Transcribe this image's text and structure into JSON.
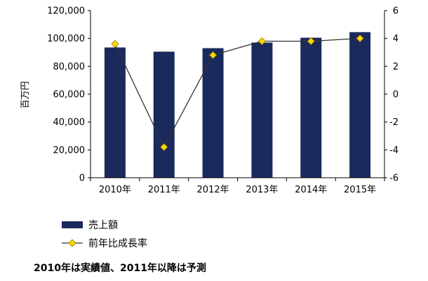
{
  "chart_data": {
    "type": "bar",
    "categories": [
      "2010年",
      "2011年",
      "2012年",
      "2013年",
      "2014年",
      "2015年"
    ],
    "series": [
      {
        "name": "売上額",
        "type": "bar",
        "axis": "left",
        "values": [
          93500,
          90500,
          93000,
          97000,
          100500,
          104500
        ],
        "color": "#1b2a5c"
      },
      {
        "name": "前年比成長率",
        "type": "line",
        "axis": "right",
        "values": [
          3.6,
          -3.8,
          2.8,
          3.8,
          3.8,
          4.0
        ],
        "color": "#ffd700",
        "line_color": "#333333"
      }
    ],
    "ylabel": "百万円",
    "ylim": [
      0,
      120000
    ],
    "yticks": [
      "0",
      "20,000",
      "40,000",
      "60,000",
      "80,000",
      "100,000",
      "120,000"
    ],
    "y2lim": [
      -6,
      6
    ],
    "y2ticks": [
      "-6",
      "-4",
      "-2",
      "0",
      "2",
      "4",
      "6"
    ],
    "grid": false,
    "legend_position": "bottom-left"
  },
  "footnote": "2010年は実績値、2011年以降は予測"
}
